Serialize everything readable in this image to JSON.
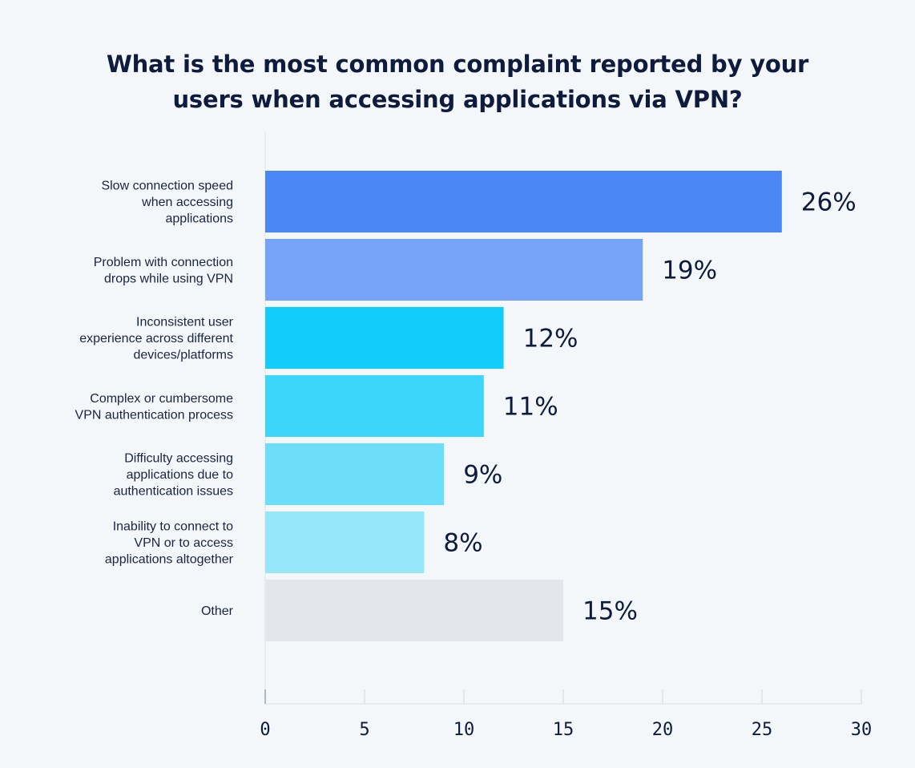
{
  "chart_data": {
    "type": "bar",
    "orientation": "horizontal",
    "title_lines": [
      "What is the most common complaint reported by your",
      "users when accessing applications via VPN?"
    ],
    "categories": [
      [
        "Slow connection speed",
        "when accessing",
        "applications"
      ],
      [
        "Problem with connection",
        "drops while using VPN"
      ],
      [
        "Inconsistent user",
        "experience across different",
        "devices/platforms"
      ],
      [
        "Complex or cumbersome",
        "VPN authentication process"
      ],
      [
        "Difficulty accessing",
        "applications due to",
        "authentication issues"
      ],
      [
        "Inability to connect to",
        "VPN or to access",
        "applications altogether"
      ],
      [
        "Other"
      ]
    ],
    "values": [
      26,
      19,
      12,
      11,
      9,
      8,
      15
    ],
    "value_labels": [
      "26%",
      "19%",
      "12%",
      "11%",
      "9%",
      "8%",
      "15%"
    ],
    "colors": [
      "#4b86f5",
      "#76a3f8",
      "#12cdfb",
      "#3cd6fb",
      "#6cdefa",
      "#97e7fb",
      "#e3e7eb"
    ],
    "xlim": [
      0,
      30
    ],
    "xticks": [
      0,
      5,
      10,
      15,
      20,
      25,
      30
    ],
    "xtick_labels": [
      "0",
      "5",
      "10",
      "15",
      "20",
      "25",
      "30"
    ],
    "xlabel": "",
    "ylabel": "",
    "grid": true,
    "legend": "none"
  }
}
